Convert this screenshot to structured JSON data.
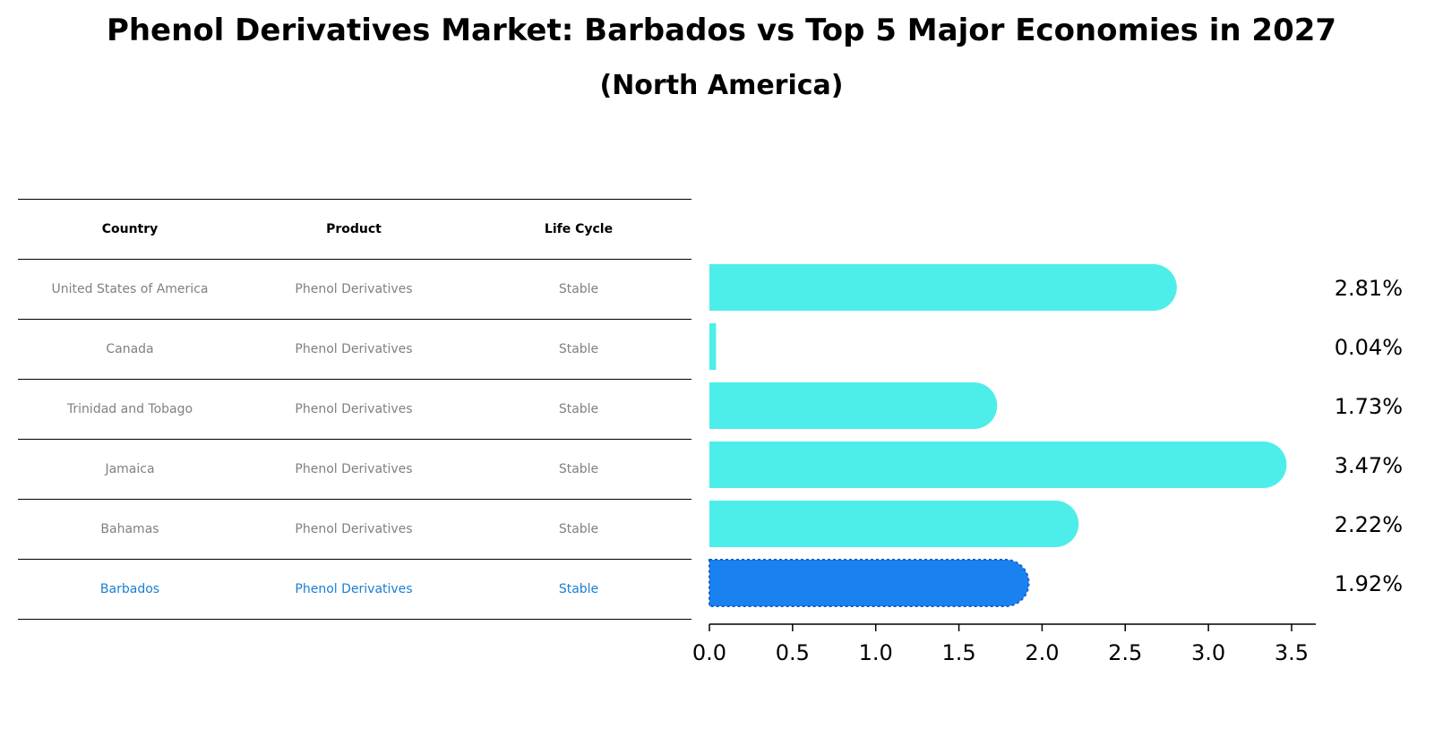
{
  "title": "Phenol Derivatives Market: Barbados vs Top 5 Major Economies in 2027",
  "subtitle": "(North America)",
  "table": {
    "headers": [
      "Country",
      "Product",
      "Life Cycle"
    ],
    "rows": [
      [
        "United States of America",
        "Phenol Derivatives",
        "Stable"
      ],
      [
        "Canada",
        "Phenol Derivatives",
        "Stable"
      ],
      [
        "Trinidad and Tobago",
        "Phenol Derivatives",
        "Stable"
      ],
      [
        "Jamaica",
        "Phenol Derivatives",
        "Stable"
      ],
      [
        "Bahamas",
        "Phenol Derivatives",
        "Stable"
      ],
      [
        "Barbados",
        "Phenol Derivatives",
        "Stable"
      ]
    ]
  },
  "colors": {
    "bar": "#4deeea",
    "highlight": "#1a82f0",
    "highlight_text": "#1a7fd1",
    "muted_text": "#808080"
  },
  "chart_data": {
    "type": "bar",
    "orientation": "horizontal",
    "categories": [
      "United States of America",
      "Canada",
      "Trinidad and Tobago",
      "Jamaica",
      "Bahamas",
      "Barbados"
    ],
    "values": [
      2.81,
      0.04,
      1.73,
      3.47,
      2.22,
      1.92
    ],
    "labels": [
      "2.81%",
      "0.04%",
      "1.73%",
      "3.47%",
      "2.22%",
      "1.92%"
    ],
    "highlight": "Barbados",
    "xlim": [
      0,
      3.65
    ],
    "xticks": [
      "0.0",
      "0.5",
      "1.0",
      "1.5",
      "2.0",
      "2.5",
      "3.0",
      "3.5"
    ],
    "xtick_values": [
      0,
      0.5,
      1.0,
      1.5,
      2.0,
      2.5,
      3.0,
      3.5
    ]
  }
}
